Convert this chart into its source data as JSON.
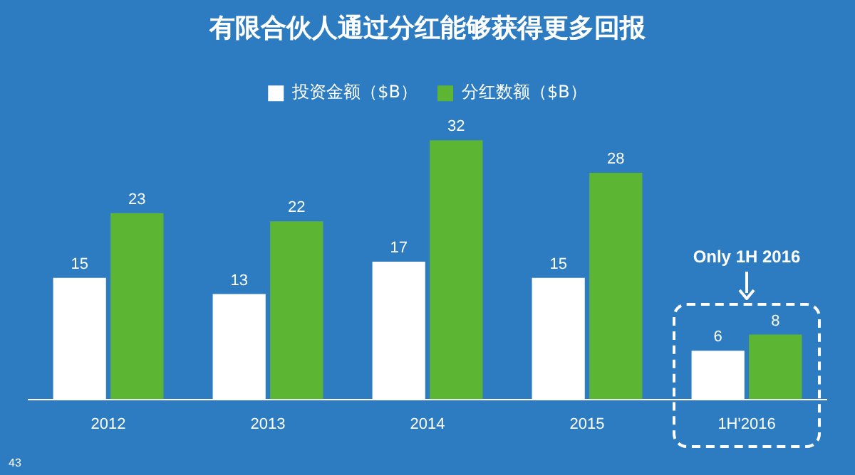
{
  "chart_data": {
    "type": "bar",
    "title": "有限合伙人通过分红能够获得更多回报",
    "categories": [
      "2012",
      "2013",
      "2014",
      "2015",
      "1H'2016"
    ],
    "series": [
      {
        "name": "投资金额（$B）",
        "color": "#ffffff",
        "values": [
          15,
          13,
          17,
          15,
          6
        ]
      },
      {
        "name": "分红数额（$B）",
        "color": "#5db534",
        "values": [
          23,
          22,
          32,
          28,
          8
        ]
      }
    ],
    "data_labels": true,
    "legend": "top",
    "grid": false,
    "tick_labels": "x",
    "annotations": [
      "Only 1H 2016",
      "43"
    ]
  }
}
